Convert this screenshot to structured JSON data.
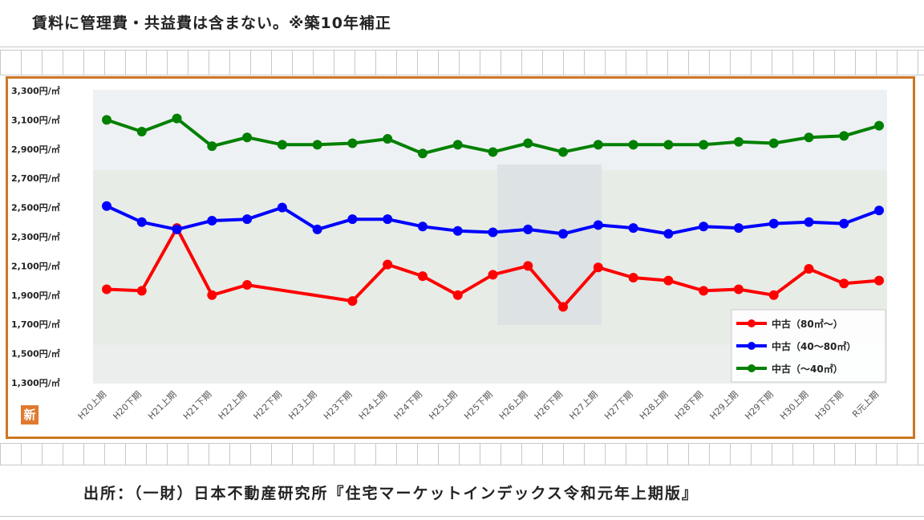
{
  "page": {
    "heading": "賃料に管理費・共益費は含まない。※築10年補正",
    "source": "出所：（一財）日本不動産研究所『住宅マーケットインデックス令和元年上期版』",
    "badge_char": "新"
  },
  "chart_data": {
    "type": "line",
    "categories": [
      "H20上期",
      "H20下期",
      "H21上期",
      "H21下期",
      "H22上期",
      "H22下期",
      "H23上期",
      "H23下期",
      "H24上期",
      "H24下期",
      "H25上期",
      "H25下期",
      "H26上期",
      "H26下期",
      "H27上期",
      "H27下期",
      "H28上期",
      "H28下期",
      "H29上期",
      "H29下期",
      "H30上期",
      "H30下期",
      "R元上期"
    ],
    "yticks": [
      "3,300円/㎡",
      "3,100円/㎡",
      "2,900円/㎡",
      "2,700円/㎡",
      "2,500円/㎡",
      "2,300円/㎡",
      "2,100円/㎡",
      "1,900円/㎡",
      "1,700円/㎡",
      "1,500円/㎡",
      "1,300円/㎡"
    ],
    "ylim": [
      1300,
      3300
    ],
    "series": [
      {
        "name": "中古（80㎡～）",
        "color": "#ff0000",
        "values": [
          1940,
          1930,
          2360,
          1900,
          1970,
          null,
          null,
          1860,
          2110,
          2030,
          1900,
          2040,
          2100,
          1820,
          2090,
          2020,
          2000,
          1930,
          1940,
          1900,
          2080,
          1980,
          2000
        ]
      },
      {
        "name": "中古（40～80㎡）",
        "color": "#0000ff",
        "values": [
          2510,
          2400,
          2350,
          2410,
          2420,
          2500,
          2350,
          2420,
          2420,
          2370,
          2340,
          2330,
          2350,
          2320,
          2380,
          2360,
          2320,
          2370,
          2360,
          2390,
          2400,
          2390,
          2480
        ]
      },
      {
        "name": "中古（～40㎡）",
        "color": "#008000",
        "values": [
          3100,
          3020,
          3110,
          2920,
          2980,
          2930,
          2930,
          2940,
          2970,
          2870,
          2930,
          2880,
          2940,
          2880,
          2930,
          2930,
          2930,
          2930,
          2950,
          2940,
          2980,
          2990,
          3060
        ]
      }
    ],
    "legend_position": "bottom-right"
  }
}
